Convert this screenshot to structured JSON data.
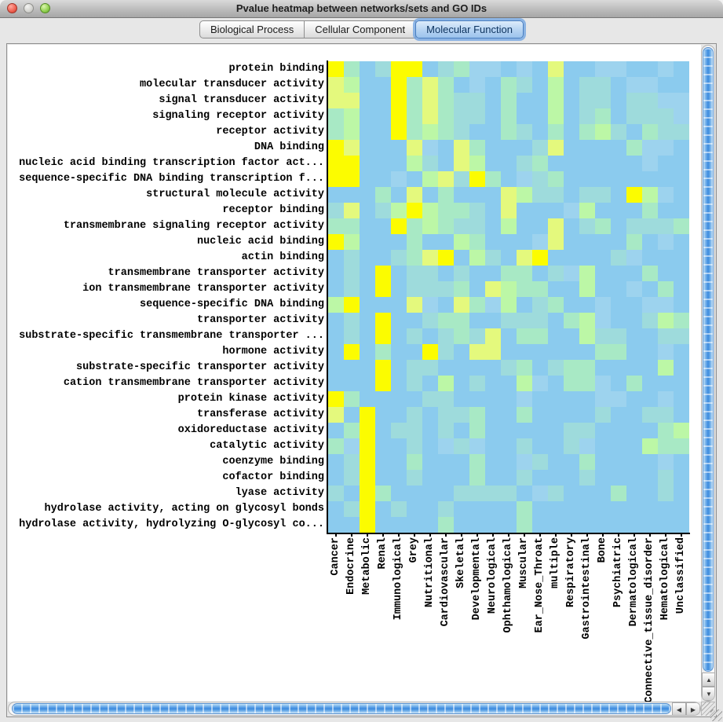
{
  "window": {
    "title": "Pvalue heatmap between networks/sets and GO IDs"
  },
  "tabs": [
    {
      "label": "Biological Process",
      "selected": false
    },
    {
      "label": "Cellular Component",
      "selected": false
    },
    {
      "label": "Molecular Function",
      "selected": true
    }
  ],
  "icons": {
    "scroll_up": "▲",
    "scroll_down": "▼",
    "scroll_left": "◀",
    "scroll_right": "▶"
  },
  "colors": {
    "selected_tab_accent": "#4a7fc1",
    "axis": "#000000",
    "significant_yellow": "#fcfc00",
    "base_blue": "#8bcbee",
    "scroll_thumb_blue": "#3c8ade"
  },
  "chart_data": {
    "type": "heatmap",
    "title": "Pvalue heatmap between networks/sets and GO IDs",
    "rows": [
      "protein binding",
      "molecular transducer activity",
      "signal transducer activity",
      "signaling receptor activity",
      "receptor activity",
      "DNA binding",
      "nucleic acid binding transcription factor act...",
      "sequence-specific DNA binding transcription f...",
      "structural molecule activity",
      "receptor binding",
      "transmembrane signaling receptor activity",
      "nucleic acid binding",
      "actin binding",
      "transmembrane transporter activity",
      "ion transmembrane transporter activity",
      "sequence-specific DNA binding",
      "transporter activity",
      "substrate-specific transmembrane transporter ...",
      "hormone activity",
      "substrate-specific transporter activity",
      "cation transmembrane transporter activity",
      "protein kinase activity",
      "transferase activity",
      "oxidoreductase activity",
      "catalytic activity",
      "coenzyme binding",
      "cofactor binding",
      "lyase activity",
      "hydrolase activity, acting on glycosyl bonds",
      "hydrolase activity, hydrolyzing O-glycosyl co..."
    ],
    "columns": [
      "Cancer",
      "Endocrine",
      "Metabolic",
      "Renal",
      "Immunological",
      "Grey",
      "Nutritional",
      "Cardiovascular",
      "Skeletal",
      "Developmental",
      "Neurological",
      "Ophthamological",
      "Muscular",
      "Ear_Nose_Throat",
      "multiple",
      "Respiratory",
      "Gastrointestinal",
      "Bone",
      "Psychiatric",
      "Dermatological",
      "Connective_tissue_disorder",
      "Hematological",
      "Unclassified"
    ],
    "palette": {
      "Y": "#fcfc00",
      "y": "#e4f97d",
      "g": "#bcf7a6",
      "G": "#a8e9c5",
      "t": "#9edbdc",
      "L": "#9dd3ee",
      "B": "#8bcbee"
    },
    "value_scale": "Y lowest p-value (most significant) through y,g,G,t,L to B highest p-value",
    "grid": [
      "YGBtYYBtGLLBLByBBLLBBLB",
      "ygBBYGyGBLBGtBgBttBLLBB",
      "yyBBYGyGttBGBBgBttBttLL",
      "GgBBYGyGttBGBBgBtGBtttL",
      "GgBBYGgGtBBGtBGBGgtBGtt",
      "YyBBByLByGBBBtyBBBBGLLB",
      "YYBBBgtBygBBtGBBBBBBLBB",
      "YYBBLBgytYGBLtGBBBBBBBB",
      "BBBGByBGBBBygttBttBYgLB",
      "tyBtgYgGGtByBBBLgBBBGBB",
      "GGBBYGgGttBgBByBtGBtttG",
      "YgBBBGBBgGBBBLyBBBBGBLB",
      "BtBBtGyYBgtByYBBBBtLBBB",
      "BtBYBttBtBBGGBtLgBBBGBB",
      "BtBYBtttGBygGGBBgBBLBGB",
      "gYBBByLByGLgBtGBBLBBLLB",
      "BtBYBBtGGBBtttBGgLBBtgG",
      "BtBYBtBtGtyBGGBBgttBBtt",
      "BYBGBBYtByyBBBBBBGGBBLB",
      "BBBYBttBBBBtGBtGGBBBBgB",
      "BBBYBtBgBtBBgLBGGLBGBBB",
      "YGBBBBttBBBBLBBBBLLBBLB",
      "yBYBBtBttGBBGBBBBtBBttB",
      "BGYBttBtBGBBBBBttBBBBGg",
      "GLYBBtBLtLBBtBBtLBBBgGG",
      "BtYBBGBBBGBBLtBBGBBBBLB",
      "BtYBBtBBBGBBtBBBtBBBBtB",
      "tBYGBBBBttttBLtBBBGBBtB",
      "BtYBtBBtBBBBGBBBBBBBBBB",
      "BBYBBBBGBBBBGBBBBBBBBBB"
    ]
  }
}
